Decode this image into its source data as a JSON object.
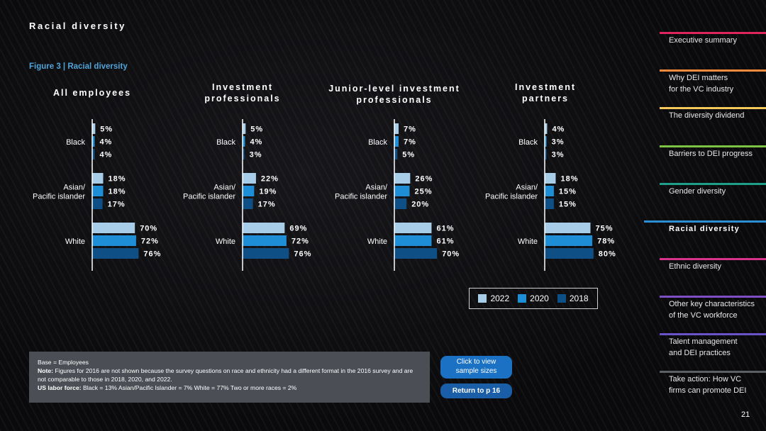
{
  "page": {
    "heading": "Racial diversity",
    "figure_caption": "Figure 3  |  Racial diversity",
    "page_number": "21"
  },
  "chart_data": {
    "type": "bar",
    "orientation": "horizontal",
    "categories": [
      "Black",
      "Asian/\nPacific islander",
      "White"
    ],
    "series_names": [
      "2022",
      "2020",
      "2018"
    ],
    "colors": {
      "2022": "#a7cde9",
      "2020": "#1e8fd6",
      "2018": "#0e4f86"
    },
    "panels": [
      {
        "title": "All employees",
        "series": [
          {
            "name": "2022",
            "values": [
              5,
              18,
              70
            ]
          },
          {
            "name": "2020",
            "values": [
              4,
              18,
              72
            ]
          },
          {
            "name": "2018",
            "values": [
              4,
              17,
              76
            ]
          }
        ]
      },
      {
        "title": "Investment\nprofessionals",
        "series": [
          {
            "name": "2022",
            "values": [
              5,
              22,
              69
            ]
          },
          {
            "name": "2020",
            "values": [
              4,
              19,
              72
            ]
          },
          {
            "name": "2018",
            "values": [
              3,
              17,
              76
            ]
          }
        ]
      },
      {
        "title": "Junior-level investment\nprofessionals",
        "series": [
          {
            "name": "2022",
            "values": [
              7,
              26,
              61
            ]
          },
          {
            "name": "2020",
            "values": [
              7,
              25,
              61
            ]
          },
          {
            "name": "2018",
            "values": [
              5,
              20,
              70
            ]
          }
        ]
      },
      {
        "title": "Investment\npartners",
        "series": [
          {
            "name": "2022",
            "values": [
              4,
              18,
              75
            ]
          },
          {
            "name": "2020",
            "values": [
              3,
              15,
              78
            ]
          },
          {
            "name": "2018",
            "values": [
              3,
              15,
              80
            ]
          }
        ]
      }
    ],
    "value_suffix": "%",
    "legend": [
      "2022",
      "2020",
      "2018"
    ]
  },
  "notes": {
    "base": "Base = Employees",
    "note_label": "Note:",
    "note_text": " Figures for 2016 are not shown because the survey questions on race and ethnicity had a different format in the 2016 survey and are not comparable to those in 2018, 2020, and 2022.",
    "labor_label": "US labor force:",
    "labor_text": " Black = 13%   Asian/Pacific Islander = 7%  White = 77%  Two or more races = 2%"
  },
  "buttons": {
    "sample_sizes": "Click to view\nsample sizes",
    "return": "Return to p 16"
  },
  "nav": [
    {
      "label": "Executive summary",
      "color": "#e0245e",
      "active": false
    },
    {
      "label": "Why DEI matters\nfor the VC industry",
      "color": "#f08a3c",
      "active": false
    },
    {
      "label": "The diversity dividend",
      "color": "#f4c85a",
      "active": false
    },
    {
      "label": "Barriers to DEI progress",
      "color": "#7cc243",
      "active": false
    },
    {
      "label": "Gender diversity",
      "color": "#1f9e8a",
      "active": false
    },
    {
      "label": "Racial diversity",
      "color": "#2b8fd6",
      "active": true
    },
    {
      "label": "Ethnic diversity",
      "color": "#d6338a",
      "active": false
    },
    {
      "label": "Other key characteristics\nof the VC workforce",
      "color": "#7c4fc4",
      "active": false
    },
    {
      "label": "Talent management\nand DEI practices",
      "color": "#6a52c8",
      "active": false
    },
    {
      "label": "Take action: How VC\nfirms can promote DEI",
      "color": "#5b5f66",
      "active": false
    }
  ]
}
